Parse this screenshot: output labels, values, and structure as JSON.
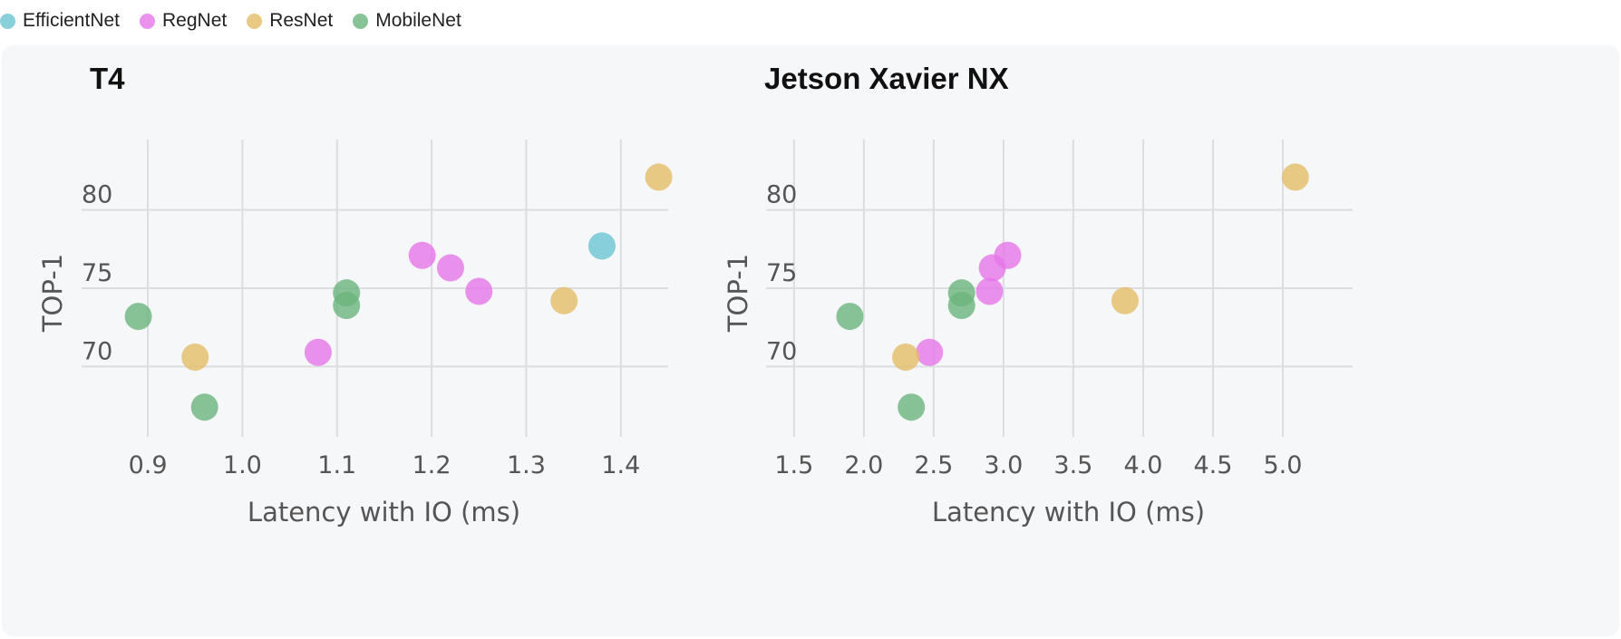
{
  "legend": {
    "items": [
      {
        "label": "EfficientNet",
        "color": "#6cc4d2"
      },
      {
        "label": "RegNet",
        "color": "#e676ea"
      },
      {
        "label": "ResNet",
        "color": "#e3bd66"
      },
      {
        "label": "MobileNet",
        "color": "#6ab47d"
      }
    ]
  },
  "chart_data": [
    {
      "type": "scatter",
      "title": "T4",
      "xlabel": "Latency with IO (ms)",
      "ylabel": "TOP-1",
      "xlim": [
        0.83,
        1.45
      ],
      "ylim": [
        65.5,
        84.5
      ],
      "xticks": [
        "0.9",
        "1.0",
        "1.1",
        "1.2",
        "1.3",
        "1.4"
      ],
      "yticks": [
        "70",
        "75",
        "80"
      ],
      "grid": true,
      "legend": "top-left",
      "series": [
        {
          "name": "EfficientNet",
          "color": "#6cc4d2",
          "points": [
            [
              1.38,
              77.7
            ]
          ]
        },
        {
          "name": "RegNet",
          "color": "#e676ea",
          "points": [
            [
              1.08,
              70.9
            ],
            [
              1.19,
              77.1
            ],
            [
              1.22,
              76.3
            ],
            [
              1.25,
              74.8
            ]
          ]
        },
        {
          "name": "ResNet",
          "color": "#e3bd66",
          "points": [
            [
              0.95,
              70.6
            ],
            [
              1.34,
              74.2
            ],
            [
              1.44,
              82.1
            ]
          ]
        },
        {
          "name": "MobileNet",
          "color": "#6ab47d",
          "points": [
            [
              0.89,
              73.2
            ],
            [
              0.96,
              67.4
            ],
            [
              1.11,
              74.7
            ],
            [
              1.11,
              73.9
            ]
          ]
        }
      ]
    },
    {
      "type": "scatter",
      "title": "Jetson Xavier NX",
      "xlabel": "Latency with IO (ms)",
      "ylabel": "TOP-1",
      "xlim": [
        1.3,
        5.5
      ],
      "ylim": [
        65.5,
        84.5
      ],
      "xticks": [
        "1.5",
        "2.0",
        "2.5",
        "3.0",
        "3.5",
        "4.0",
        "4.5",
        "5.0"
      ],
      "yticks": [
        "70",
        "75",
        "80"
      ],
      "grid": true,
      "legend": "top-left",
      "series": [
        {
          "name": "EfficientNet",
          "color": "#6cc4d2",
          "points": []
        },
        {
          "name": "RegNet",
          "color": "#e676ea",
          "points": [
            [
              2.47,
              70.9
            ],
            [
              2.9,
              74.8
            ],
            [
              2.92,
              76.3
            ],
            [
              3.03,
              77.1
            ]
          ]
        },
        {
          "name": "ResNet",
          "color": "#e3bd66",
          "points": [
            [
              2.3,
              70.6
            ],
            [
              3.87,
              74.2
            ],
            [
              5.09,
              82.1
            ]
          ]
        },
        {
          "name": "MobileNet",
          "color": "#6ab47d",
          "points": [
            [
              1.9,
              73.2
            ],
            [
              2.34,
              67.4
            ],
            [
              2.7,
              74.7
            ],
            [
              2.7,
              73.9
            ]
          ]
        }
      ]
    }
  ]
}
